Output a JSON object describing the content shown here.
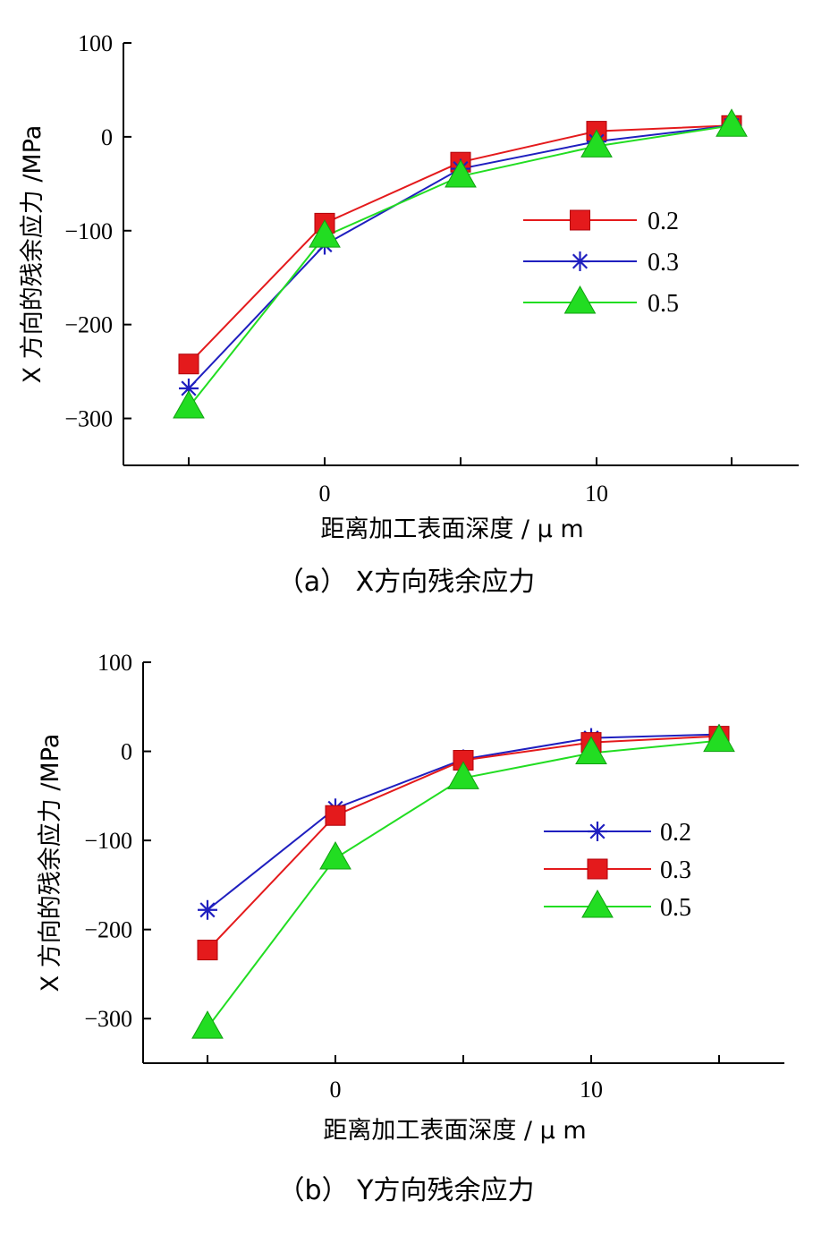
{
  "chart_data": [
    {
      "type": "line",
      "caption": "（a）  X方向残余应力",
      "xlabel": "距离加工表面深度 / μ m",
      "ylabel": "X 方向的残余应力 /MPa",
      "x": [
        -5,
        0,
        5,
        10,
        15
      ],
      "xlim": [
        -7.5,
        17.5
      ],
      "xticks": [
        0,
        10
      ],
      "ylim": [
        -350,
        100
      ],
      "yticks": [
        100,
        0,
        -100,
        -200,
        -300
      ],
      "ytick_labels": [
        "100",
        "0",
        "-100",
        "-200",
        "-300"
      ],
      "legend_position": "center-right",
      "series": [
        {
          "name": "0.2",
          "color": "#e41a1c",
          "marker": "square",
          "values": [
            -242,
            -92,
            -27,
            6,
            12
          ]
        },
        {
          "name": "0.3",
          "color": "#1f1fbf",
          "marker": "asterisk",
          "values": [
            -268,
            -115,
            -34,
            -5,
            12
          ]
        },
        {
          "name": "0.5",
          "color": "#22dd22",
          "marker": "triangle",
          "values": [
            -288,
            -106,
            -42,
            -10,
            12
          ]
        }
      ]
    },
    {
      "type": "line",
      "caption": "（b）  Y方向残余应力",
      "xlabel": "距离加工表面深度 / μ m",
      "ylabel": "X 方向的残余应力 /MPa",
      "x": [
        -5,
        0,
        5,
        10,
        15
      ],
      "xlim": [
        -7.5,
        17.5
      ],
      "xticks": [
        0,
        10
      ],
      "ylim": [
        -350,
        100
      ],
      "yticks": [
        100,
        0,
        -100,
        -200,
        -300
      ],
      "ytick_labels": [
        "100",
        "0",
        "-100",
        "-200",
        "-300"
      ],
      "legend_position": "center-right",
      "series": [
        {
          "name": "0.2",
          "color": "#1f1fbf",
          "marker": "asterisk",
          "values": [
            -178,
            -64,
            -9,
            15,
            19
          ]
        },
        {
          "name": "0.3",
          "color": "#e41a1c",
          "marker": "square",
          "values": [
            -223,
            -72,
            -10,
            10,
            17
          ]
        },
        {
          "name": "0.5",
          "color": "#22dd22",
          "marker": "triangle",
          "values": [
            -310,
            -120,
            -30,
            -2,
            12
          ]
        }
      ]
    }
  ]
}
